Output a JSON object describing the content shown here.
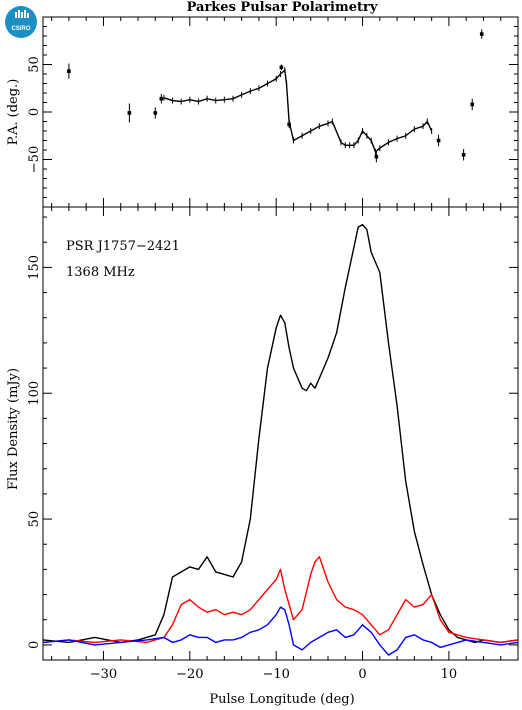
{
  "chart_data": [
    {
      "type": "scatter",
      "title": "Parkes Pulsar Polarimetry",
      "ylabel": "P.A. (deg.)",
      "xlim": [
        -37,
        18
      ],
      "ylim": [
        -100,
        100
      ],
      "yticks": [
        -50,
        0,
        50
      ],
      "grid": false,
      "points": [
        {
          "x": -34.0,
          "y": 43,
          "err": 8
        },
        {
          "x": -27.0,
          "y": -1,
          "err": 10
        },
        {
          "x": -24.0,
          "y": -1,
          "err": 6
        },
        {
          "x": -23.3,
          "y": 14,
          "err": 5
        },
        {
          "x": -9.4,
          "y": 47,
          "err": 3
        },
        {
          "x": -8.5,
          "y": -13,
          "err": 4
        },
        {
          "x": 1.6,
          "y": -47,
          "err": 6
        },
        {
          "x": 8.8,
          "y": -30,
          "err": 6
        },
        {
          "x": 11.7,
          "y": -45,
          "err": 6
        },
        {
          "x": 12.7,
          "y": 8,
          "err": 6
        },
        {
          "x": 13.8,
          "y": 82,
          "err": 5
        }
      ],
      "curve": {
        "x": [
          -23,
          -22,
          -21,
          -20,
          -19,
          -18,
          -17,
          -16,
          -15,
          -14,
          -13,
          -12,
          -11,
          -10,
          -9.5,
          -9,
          -8.8,
          -8.5,
          -8,
          -7,
          -6,
          -5,
          -4,
          -3.5,
          -2.5,
          -2,
          -1.5,
          -1,
          -0.5,
          0,
          0.5,
          1,
          1.5,
          2,
          3,
          4,
          5,
          6,
          7,
          7.5,
          8
        ],
        "y": [
          15,
          12,
          11,
          13,
          11,
          14,
          12,
          13,
          14,
          18,
          22,
          25,
          30,
          35,
          40,
          44,
          30,
          -10,
          -30,
          -25,
          -20,
          -15,
          -12,
          -10,
          -32,
          -35,
          -35,
          -35,
          -30,
          -20,
          -25,
          -30,
          -42,
          -38,
          -32,
          -28,
          -25,
          -18,
          -15,
          -10,
          -20
        ]
      }
    },
    {
      "type": "line",
      "xlabel": "Pulse Longitude (deg)",
      "ylabel": "Flux Density (mJy)",
      "xlim": [
        -37,
        18
      ],
      "ylim": [
        -6,
        174
      ],
      "xticks": [
        -30,
        -20,
        -10,
        0,
        10
      ],
      "yticks": [
        0,
        50,
        100,
        150
      ],
      "grid": false,
      "annotations": [
        "PSR J1757−2421",
        "1368 MHz"
      ],
      "series": [
        {
          "color": "#000000",
          "x": [
            -37,
            -34,
            -31,
            -28,
            -26,
            -24,
            -23,
            -22,
            -21,
            -20,
            -19,
            -18,
            -17,
            -16,
            -15,
            -14,
            -13,
            -12,
            -11,
            -10,
            -9.5,
            -9,
            -8.5,
            -8,
            -7,
            -6.5,
            -6,
            -5.5,
            -5,
            -4,
            -3,
            -2,
            -1,
            -0.5,
            0,
            0.5,
            1,
            2,
            3,
            4,
            5,
            6,
            7,
            8,
            9,
            10,
            11,
            12,
            13,
            14,
            16,
            18
          ],
          "y": [
            2,
            1,
            3,
            1,
            2,
            4,
            12,
            27,
            29,
            31,
            30,
            35,
            29,
            28,
            27,
            33,
            50,
            82,
            110,
            126,
            131,
            128,
            118,
            110,
            102,
            101,
            104,
            102,
            106,
            114,
            124,
            142,
            158,
            166,
            167,
            165,
            156,
            148,
            120,
            95,
            65,
            45,
            32,
            20,
            12,
            6,
            3,
            2,
            1,
            2,
            1,
            2
          ]
        },
        {
          "color": "#ff0000",
          "x": [
            -37,
            -34,
            -31,
            -28,
            -25,
            -23,
            -22,
            -21,
            -20,
            -19,
            -18,
            -17,
            -16,
            -15,
            -14,
            -13,
            -12,
            -11,
            -10,
            -9.5,
            -9,
            -8,
            -7,
            -6,
            -5.5,
            -5,
            -4.5,
            -4,
            -3,
            -2,
            -1,
            0,
            1,
            2,
            3,
            4,
            5,
            6,
            7,
            8,
            9,
            10,
            12,
            14,
            16,
            18
          ],
          "y": [
            1,
            2,
            1,
            2,
            1,
            3,
            8,
            16,
            18,
            15,
            13,
            14,
            12,
            13,
            12,
            14,
            18,
            22,
            26,
            30,
            22,
            10,
            14,
            28,
            33,
            35,
            30,
            25,
            18,
            15,
            14,
            12,
            8,
            4,
            6,
            12,
            18,
            15,
            16,
            20,
            10,
            5,
            3,
            2,
            1,
            2
          ]
        },
        {
          "color": "#0000ff",
          "x": [
            -37,
            -34,
            -31,
            -28,
            -25,
            -23,
            -22,
            -21,
            -20,
            -19,
            -18,
            -17,
            -16,
            -15,
            -14,
            -13,
            -12,
            -11,
            -10,
            -9.5,
            -9,
            -8.5,
            -8,
            -7,
            -6,
            -5,
            -4,
            -3,
            -2,
            -1,
            0,
            1,
            2,
            3,
            4,
            5,
            6,
            7,
            8,
            9,
            10,
            12,
            14,
            16,
            18
          ],
          "y": [
            1,
            2,
            0,
            1,
            2,
            3,
            1,
            2,
            4,
            3,
            3,
            1,
            2,
            2,
            3,
            5,
            6,
            8,
            12,
            15,
            14,
            8,
            0,
            -2,
            1,
            3,
            5,
            6,
            3,
            4,
            8,
            5,
            0,
            -4,
            -2,
            3,
            4,
            2,
            1,
            -1,
            0,
            2,
            1,
            0,
            1
          ]
        }
      ]
    }
  ]
}
